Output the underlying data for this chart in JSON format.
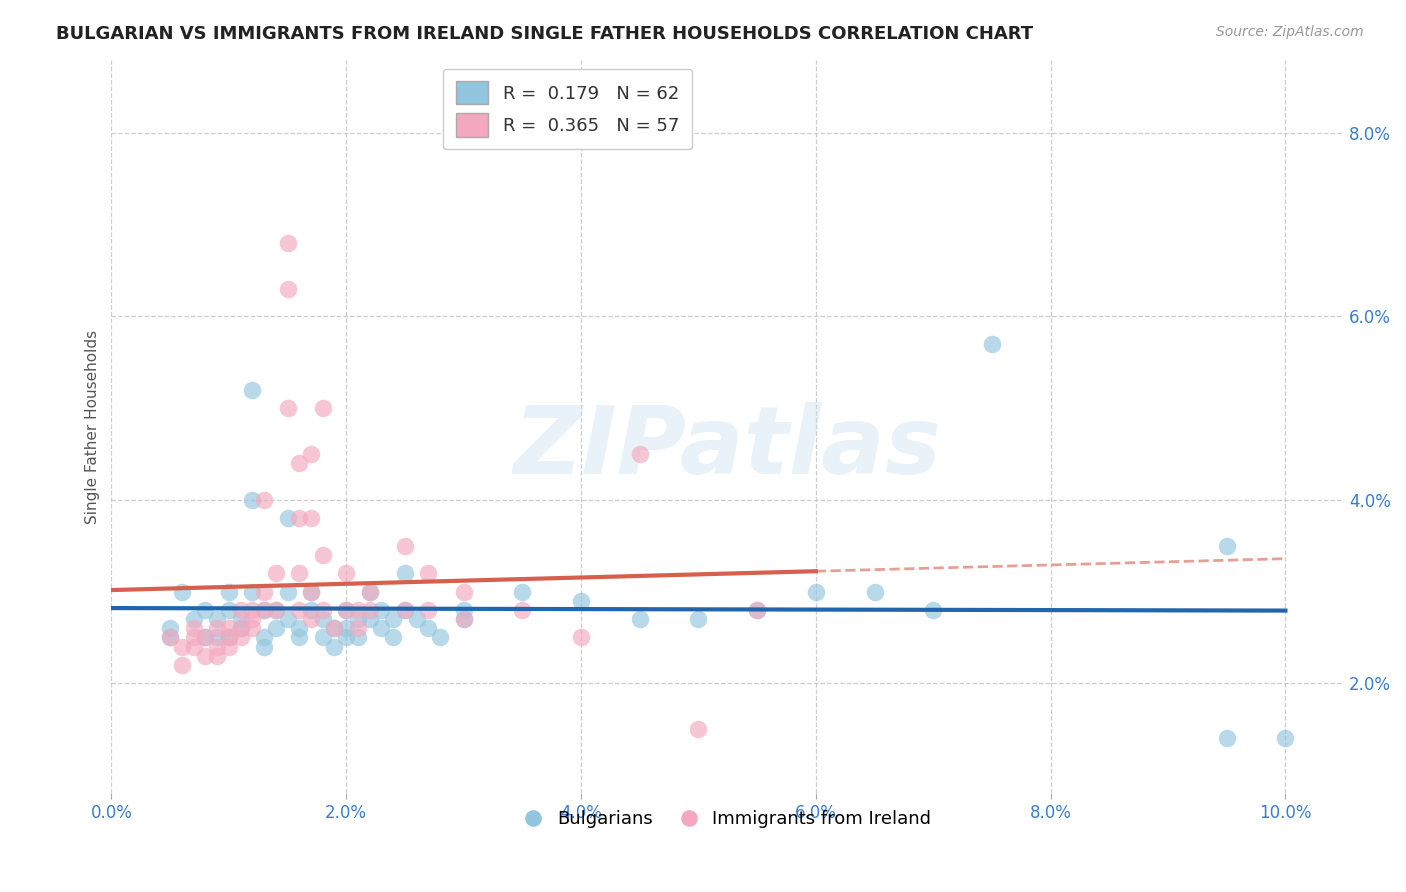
{
  "title": "BULGARIAN VS IMMIGRANTS FROM IRELAND SINGLE FATHER HOUSEHOLDS CORRELATION CHART",
  "source": "Source: ZipAtlas.com",
  "ylabel": "Single Father Households",
  "xlim": [
    0.0,
    0.105
  ],
  "ylim": [
    0.008,
    0.088
  ],
  "xticks": [
    0.0,
    0.02,
    0.04,
    0.06,
    0.08,
    0.1
  ],
  "yticks": [
    0.02,
    0.04,
    0.06,
    0.08
  ],
  "xtick_labels": [
    "0.0%",
    "2.0%",
    "4.0%",
    "6.0%",
    "8.0%",
    "10.0%"
  ],
  "ytick_labels": [
    "2.0%",
    "4.0%",
    "6.0%",
    "8.0%"
  ],
  "legend1_R": "0.179",
  "legend1_N": "62",
  "legend2_R": "0.365",
  "legend2_N": "57",
  "blue_color": "#92c5de",
  "pink_color": "#f4a8bf",
  "blue_line_color": "#2166ac",
  "pink_line_color": "#d6604d",
  "blue_scatter": [
    [
      0.005,
      0.026
    ],
    [
      0.005,
      0.025
    ],
    [
      0.006,
      0.03
    ],
    [
      0.007,
      0.027
    ],
    [
      0.008,
      0.025
    ],
    [
      0.008,
      0.028
    ],
    [
      0.009,
      0.025
    ],
    [
      0.009,
      0.027
    ],
    [
      0.01,
      0.025
    ],
    [
      0.01,
      0.03
    ],
    [
      0.01,
      0.028
    ],
    [
      0.011,
      0.026
    ],
    [
      0.011,
      0.027
    ],
    [
      0.012,
      0.052
    ],
    [
      0.012,
      0.04
    ],
    [
      0.012,
      0.03
    ],
    [
      0.013,
      0.028
    ],
    [
      0.013,
      0.025
    ],
    [
      0.013,
      0.024
    ],
    [
      0.014,
      0.026
    ],
    [
      0.014,
      0.028
    ],
    [
      0.015,
      0.038
    ],
    [
      0.015,
      0.03
    ],
    [
      0.015,
      0.027
    ],
    [
      0.016,
      0.026
    ],
    [
      0.016,
      0.025
    ],
    [
      0.017,
      0.03
    ],
    [
      0.017,
      0.028
    ],
    [
      0.018,
      0.025
    ],
    [
      0.018,
      0.027
    ],
    [
      0.019,
      0.026
    ],
    [
      0.019,
      0.024
    ],
    [
      0.02,
      0.028
    ],
    [
      0.02,
      0.026
    ],
    [
      0.02,
      0.025
    ],
    [
      0.021,
      0.025
    ],
    [
      0.021,
      0.027
    ],
    [
      0.022,
      0.03
    ],
    [
      0.022,
      0.027
    ],
    [
      0.023,
      0.028
    ],
    [
      0.023,
      0.026
    ],
    [
      0.024,
      0.025
    ],
    [
      0.024,
      0.027
    ],
    [
      0.025,
      0.032
    ],
    [
      0.025,
      0.028
    ],
    [
      0.026,
      0.027
    ],
    [
      0.027,
      0.026
    ],
    [
      0.028,
      0.025
    ],
    [
      0.03,
      0.028
    ],
    [
      0.03,
      0.027
    ],
    [
      0.035,
      0.03
    ],
    [
      0.04,
      0.029
    ],
    [
      0.045,
      0.027
    ],
    [
      0.05,
      0.027
    ],
    [
      0.055,
      0.028
    ],
    [
      0.06,
      0.03
    ],
    [
      0.065,
      0.03
    ],
    [
      0.07,
      0.028
    ],
    [
      0.075,
      0.057
    ],
    [
      0.095,
      0.035
    ],
    [
      0.095,
      0.014
    ],
    [
      0.1,
      0.014
    ]
  ],
  "pink_scatter": [
    [
      0.005,
      0.025
    ],
    [
      0.006,
      0.024
    ],
    [
      0.006,
      0.022
    ],
    [
      0.007,
      0.026
    ],
    [
      0.007,
      0.025
    ],
    [
      0.007,
      0.024
    ],
    [
      0.008,
      0.023
    ],
    [
      0.008,
      0.025
    ],
    [
      0.009,
      0.026
    ],
    [
      0.009,
      0.024
    ],
    [
      0.009,
      0.023
    ],
    [
      0.01,
      0.026
    ],
    [
      0.01,
      0.025
    ],
    [
      0.01,
      0.024
    ],
    [
      0.011,
      0.028
    ],
    [
      0.011,
      0.026
    ],
    [
      0.011,
      0.025
    ],
    [
      0.012,
      0.028
    ],
    [
      0.012,
      0.027
    ],
    [
      0.012,
      0.026
    ],
    [
      0.013,
      0.03
    ],
    [
      0.013,
      0.028
    ],
    [
      0.013,
      0.04
    ],
    [
      0.014,
      0.032
    ],
    [
      0.014,
      0.028
    ],
    [
      0.015,
      0.068
    ],
    [
      0.015,
      0.063
    ],
    [
      0.015,
      0.05
    ],
    [
      0.016,
      0.044
    ],
    [
      0.016,
      0.038
    ],
    [
      0.016,
      0.032
    ],
    [
      0.016,
      0.028
    ],
    [
      0.017,
      0.045
    ],
    [
      0.017,
      0.038
    ],
    [
      0.017,
      0.03
    ],
    [
      0.017,
      0.027
    ],
    [
      0.018,
      0.05
    ],
    [
      0.018,
      0.034
    ],
    [
      0.018,
      0.028
    ],
    [
      0.019,
      0.026
    ],
    [
      0.02,
      0.032
    ],
    [
      0.02,
      0.028
    ],
    [
      0.021,
      0.028
    ],
    [
      0.021,
      0.026
    ],
    [
      0.022,
      0.03
    ],
    [
      0.022,
      0.028
    ],
    [
      0.025,
      0.035
    ],
    [
      0.025,
      0.028
    ],
    [
      0.027,
      0.032
    ],
    [
      0.027,
      0.028
    ],
    [
      0.03,
      0.03
    ],
    [
      0.03,
      0.027
    ],
    [
      0.035,
      0.028
    ],
    [
      0.04,
      0.025
    ],
    [
      0.045,
      0.045
    ],
    [
      0.05,
      0.015
    ],
    [
      0.055,
      0.028
    ]
  ],
  "watermark": "ZIPatlas",
  "background_color": "#ffffff",
  "grid_color": "#c8c8c8"
}
